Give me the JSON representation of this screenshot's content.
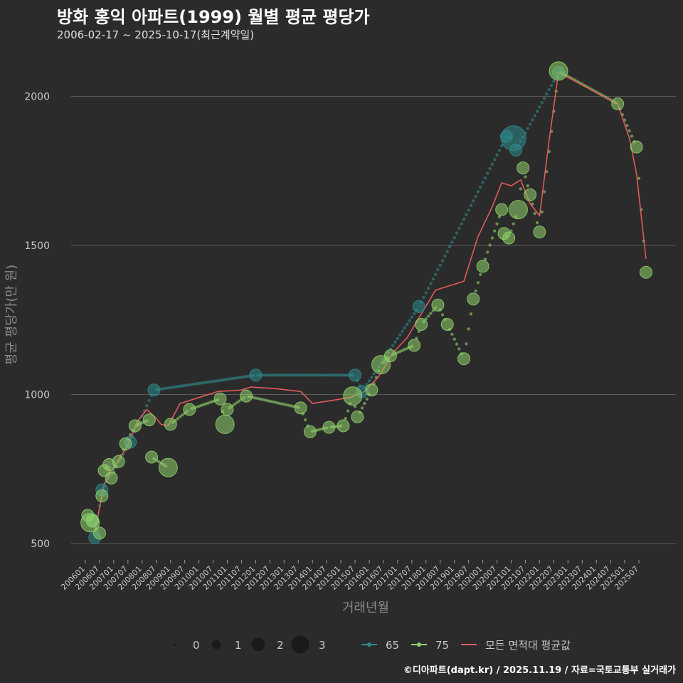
{
  "title": "방화 홍익 아파트(1999) 월별 평균 평당가",
  "subtitle": "2006-02-17 ~ 2025-10-17(최근계약일)",
  "footer": "©디아파트(dapt.kr) / 2025.11.19 / 자료=국토교통부 실거래가",
  "colors": {
    "background": "#2b2b2b",
    "grid": "#5c5c5c",
    "series65": "#2e8b8b",
    "series75": "#8fd16a",
    "avg": "#e05a5a"
  },
  "chart_data": {
    "type": "scatter",
    "xlabel": "거래년월",
    "ylabel": "평균 평당가(만 원)",
    "ylim": [
      450,
      2180
    ],
    "y_ticks": [
      500,
      1000,
      1500,
      2000
    ],
    "x_range_index": [
      0,
      237
    ],
    "x_ticks": [
      {
        "label": "200601",
        "i": 0
      },
      {
        "label": "200607",
        "i": 6
      },
      {
        "label": "200701",
        "i": 12
      },
      {
        "label": "200707",
        "i": 18
      },
      {
        "label": "200801",
        "i": 24
      },
      {
        "label": "200807",
        "i": 30
      },
      {
        "label": "200901",
        "i": 36
      },
      {
        "label": "200907",
        "i": 42
      },
      {
        "label": "201001",
        "i": 48
      },
      {
        "label": "201007",
        "i": 54
      },
      {
        "label": "201101",
        "i": 60
      },
      {
        "label": "201107",
        "i": 66
      },
      {
        "label": "201201",
        "i": 72
      },
      {
        "label": "201207",
        "i": 78
      },
      {
        "label": "201301",
        "i": 84
      },
      {
        "label": "201307",
        "i": 90
      },
      {
        "label": "201401",
        "i": 96
      },
      {
        "label": "201407",
        "i": 102
      },
      {
        "label": "201501",
        "i": 108
      },
      {
        "label": "201507",
        "i": 114
      },
      {
        "label": "201601",
        "i": 120
      },
      {
        "label": "201607",
        "i": 126
      },
      {
        "label": "201701",
        "i": 132
      },
      {
        "label": "201707",
        "i": 138
      },
      {
        "label": "201801",
        "i": 144
      },
      {
        "label": "201807",
        "i": 150
      },
      {
        "label": "201901",
        "i": 156
      },
      {
        "label": "201907",
        "i": 162
      },
      {
        "label": "202001",
        "i": 168
      },
      {
        "label": "202007",
        "i": 174
      },
      {
        "label": "202101",
        "i": 180
      },
      {
        "label": "202107",
        "i": 186
      },
      {
        "label": "202201",
        "i": 192
      },
      {
        "label": "202207",
        "i": 198
      },
      {
        "label": "202301",
        "i": 204
      },
      {
        "label": "202307",
        "i": 210
      },
      {
        "label": "202401",
        "i": 216
      },
      {
        "label": "202407",
        "i": 222
      },
      {
        "label": "202501",
        "i": 228
      },
      {
        "label": "202507",
        "i": 234
      }
    ],
    "series": [
      {
        "name": "65",
        "color": "#2e8b8b",
        "points": [
          {
            "i": 3,
            "v": 580,
            "n": 1
          },
          {
            "i": 4,
            "v": 520,
            "n": 1
          },
          {
            "i": 7,
            "v": 680,
            "n": 1
          },
          {
            "i": 19,
            "v": 840,
            "n": 1
          },
          {
            "i": 29,
            "v": 1015,
            "n": 1
          },
          {
            "i": 72,
            "v": 1065,
            "n": 1
          },
          {
            "i": 114,
            "v": 1065,
            "n": 1
          },
          {
            "i": 117,
            "v": 1010,
            "n": 1
          },
          {
            "i": 141,
            "v": 1295,
            "n": 1
          },
          {
            "i": 178,
            "v": 1865,
            "n": 1
          },
          {
            "i": 181,
            "v": 1860,
            "n": 3
          },
          {
            "i": 182,
            "v": 1820,
            "n": 1
          },
          {
            "i": 200,
            "v": 2080,
            "n": 1
          }
        ]
      },
      {
        "name": "75",
        "color": "#8fd16a",
        "points": [
          {
            "i": 1,
            "v": 595,
            "n": 1
          },
          {
            "i": 2,
            "v": 570,
            "n": 2
          },
          {
            "i": 3,
            "v": 575,
            "n": 1
          },
          {
            "i": 6,
            "v": 535,
            "n": 1
          },
          {
            "i": 7,
            "v": 660,
            "n": 1
          },
          {
            "i": 8,
            "v": 745,
            "n": 1
          },
          {
            "i": 10,
            "v": 765,
            "n": 1
          },
          {
            "i": 11,
            "v": 720,
            "n": 1
          },
          {
            "i": 14,
            "v": 775,
            "n": 1
          },
          {
            "i": 17,
            "v": 835,
            "n": 1
          },
          {
            "i": 21,
            "v": 895,
            "n": 1
          },
          {
            "i": 27,
            "v": 915,
            "n": 1
          },
          {
            "i": 28,
            "v": 790,
            "n": 1
          },
          {
            "i": 35,
            "v": 755,
            "n": 2
          },
          {
            "i": 36,
            "v": 900,
            "n": 1
          },
          {
            "i": 44,
            "v": 950,
            "n": 1
          },
          {
            "i": 57,
            "v": 985,
            "n": 1
          },
          {
            "i": 59,
            "v": 900,
            "n": 2
          },
          {
            "i": 60,
            "v": 950,
            "n": 1
          },
          {
            "i": 68,
            "v": 995,
            "n": 1
          },
          {
            "i": 91,
            "v": 955,
            "n": 1
          },
          {
            "i": 95,
            "v": 875,
            "n": 1
          },
          {
            "i": 103,
            "v": 890,
            "n": 1
          },
          {
            "i": 109,
            "v": 895,
            "n": 1
          },
          {
            "i": 113,
            "v": 995,
            "n": 2
          },
          {
            "i": 115,
            "v": 925,
            "n": 1
          },
          {
            "i": 121,
            "v": 1015,
            "n": 1
          },
          {
            "i": 125,
            "v": 1100,
            "n": 2
          },
          {
            "i": 129,
            "v": 1130,
            "n": 1
          },
          {
            "i": 139,
            "v": 1165,
            "n": 1
          },
          {
            "i": 142,
            "v": 1235,
            "n": 1
          },
          {
            "i": 149,
            "v": 1300,
            "n": 1
          },
          {
            "i": 153,
            "v": 1235,
            "n": 1
          },
          {
            "i": 160,
            "v": 1120,
            "n": 1
          },
          {
            "i": 164,
            "v": 1320,
            "n": 1
          },
          {
            "i": 168,
            "v": 1430,
            "n": 1
          },
          {
            "i": 176,
            "v": 1620,
            "n": 1
          },
          {
            "i": 177,
            "v": 1540,
            "n": 1
          },
          {
            "i": 179,
            "v": 1525,
            "n": 1
          },
          {
            "i": 183,
            "v": 1620,
            "n": 2
          },
          {
            "i": 185,
            "v": 1760,
            "n": 1
          },
          {
            "i": 188,
            "v": 1670,
            "n": 1
          },
          {
            "i": 192,
            "v": 1545,
            "n": 1
          },
          {
            "i": 200,
            "v": 2085,
            "n": 2
          },
          {
            "i": 225,
            "v": 1975,
            "n": 1
          },
          {
            "i": 233,
            "v": 1830,
            "n": 1
          },
          {
            "i": 237,
            "v": 1410,
            "n": 1
          }
        ]
      }
    ],
    "average": {
      "name": "모든 면적대 평균값",
      "color": "#e05a5a",
      "points": [
        {
          "i": 4,
          "v": 540
        },
        {
          "i": 8,
          "v": 700
        },
        {
          "i": 12,
          "v": 755
        },
        {
          "i": 18,
          "v": 830
        },
        {
          "i": 22,
          "v": 910
        },
        {
          "i": 26,
          "v": 950
        },
        {
          "i": 30,
          "v": 920
        },
        {
          "i": 32,
          "v": 900
        },
        {
          "i": 35,
          "v": 895
        },
        {
          "i": 40,
          "v": 970
        },
        {
          "i": 48,
          "v": 990
        },
        {
          "i": 56,
          "v": 1010
        },
        {
          "i": 66,
          "v": 1015
        },
        {
          "i": 70,
          "v": 1025
        },
        {
          "i": 80,
          "v": 1020
        },
        {
          "i": 91,
          "v": 1010
        },
        {
          "i": 96,
          "v": 970
        },
        {
          "i": 104,
          "v": 980
        },
        {
          "i": 112,
          "v": 990
        },
        {
          "i": 118,
          "v": 1010
        },
        {
          "i": 124,
          "v": 1060
        },
        {
          "i": 130,
          "v": 1140
        },
        {
          "i": 136,
          "v": 1190
        },
        {
          "i": 142,
          "v": 1270
        },
        {
          "i": 148,
          "v": 1350
        },
        {
          "i": 154,
          "v": 1365
        },
        {
          "i": 160,
          "v": 1380
        },
        {
          "i": 166,
          "v": 1530
        },
        {
          "i": 172,
          "v": 1630
        },
        {
          "i": 176,
          "v": 1710
        },
        {
          "i": 180,
          "v": 1700
        },
        {
          "i": 184,
          "v": 1720
        },
        {
          "i": 188,
          "v": 1640
        },
        {
          "i": 192,
          "v": 1600
        },
        {
          "i": 196,
          "v": 1850
        },
        {
          "i": 200,
          "v": 2080
        },
        {
          "i": 212,
          "v": 2030
        },
        {
          "i": 225,
          "v": 1975
        },
        {
          "i": 230,
          "v": 1860
        },
        {
          "i": 233,
          "v": 1740
        },
        {
          "i": 237,
          "v": 1455
        }
      ]
    },
    "legend": {
      "size_title": "",
      "sizes": [
        {
          "label": "0",
          "n": 0
        },
        {
          "label": "1",
          "n": 1
        },
        {
          "label": "2",
          "n": 2
        },
        {
          "label": "3",
          "n": 3
        }
      ],
      "series": [
        {
          "label": "65",
          "color": "#2e8b8b",
          "kind": "line-dot"
        },
        {
          "label": "75",
          "color": "#8fd16a",
          "kind": "line-dot"
        },
        {
          "label": "모든 면적대 평균값",
          "color": "#e05a5a",
          "kind": "line"
        }
      ],
      "position": "bottom"
    }
  }
}
